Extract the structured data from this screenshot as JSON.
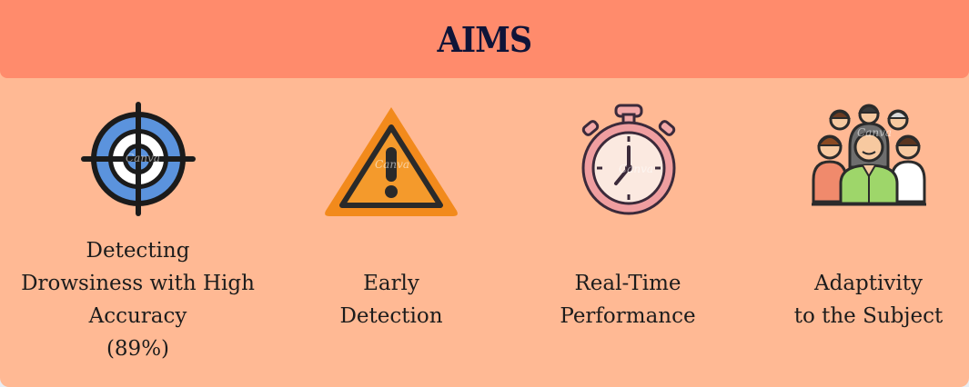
{
  "header": {
    "title": "AIMS"
  },
  "aims": [
    {
      "icon": "target-icon",
      "label_lines": [
        "Detecting",
        "Drowsiness with High",
        "Accuracy",
        "(89%)"
      ]
    },
    {
      "icon": "warning-icon",
      "label_lines": [
        "Early",
        "Detection"
      ]
    },
    {
      "icon": "stopwatch-icon",
      "label_lines": [
        "Real-Time",
        "Performance"
      ]
    },
    {
      "icon": "people-group-icon",
      "label_lines": [
        "Adaptivity",
        "to the Subject"
      ]
    }
  ],
  "watermark": "Canva",
  "colors": {
    "header_bg": "#ff8b6c",
    "card_bg": "#ffb994",
    "title": "#0f1438"
  }
}
